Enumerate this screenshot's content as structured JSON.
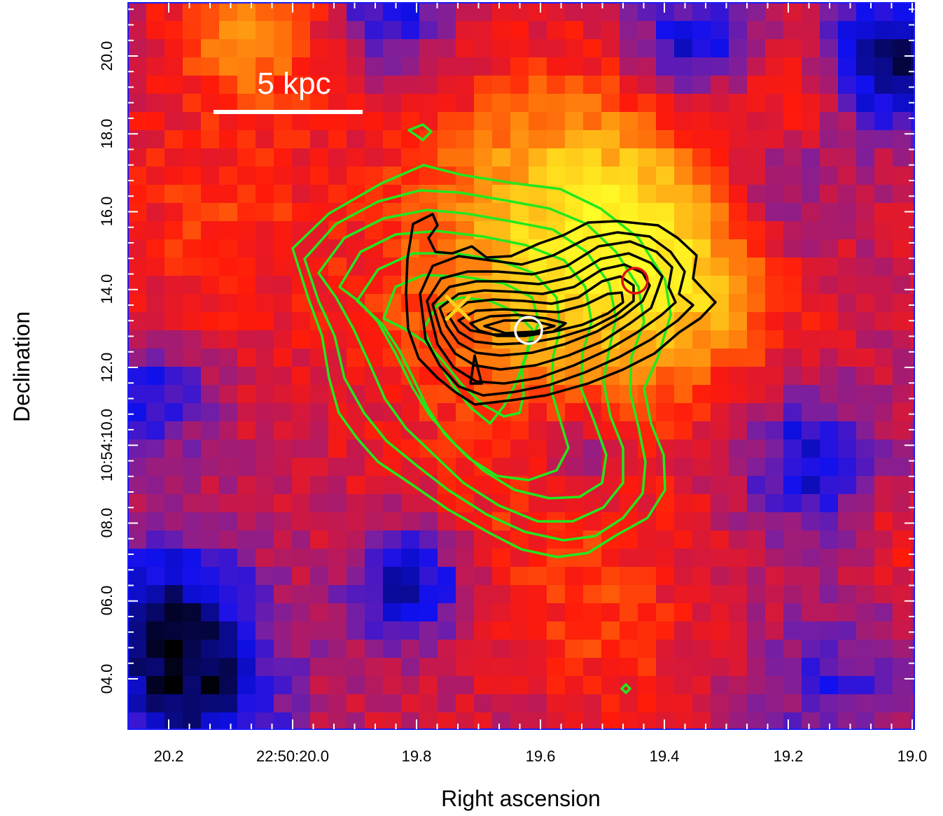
{
  "axes": {
    "xlabel": "Right ascension",
    "ylabel": "Declination",
    "xticks": [
      "20.2",
      "22:50:20.0",
      "19.8",
      "19.6",
      "19.4",
      "19.2",
      "19.0"
    ],
    "yticks": [
      "04.0",
      "06.0",
      "08.0",
      "10:54:10.0",
      "12.0",
      "14.0",
      "16.0",
      "18.0",
      "20.0"
    ]
  },
  "scale_bar": {
    "label": "5 kpc"
  },
  "colors": {
    "frame": "#1a1aff",
    "green_contours": "#22e81e",
    "black_contours": "#000000",
    "cross": "#ffd21a",
    "white_circle": "#ffffff",
    "red_circle": "#e01010",
    "colormap": [
      "#000000",
      "#0a0a8c",
      "#1010f0",
      "#7a1fa0",
      "#c8184a",
      "#ff1a0a",
      "#ff6a0a",
      "#ffaa14",
      "#ffe61e",
      "#ffff28"
    ]
  },
  "markers": [
    {
      "name": "cross",
      "ra": "19.73",
      "dec": "13.4"
    },
    {
      "name": "white-circle",
      "ra": "19.62",
      "dec": "13.0"
    },
    {
      "name": "red-circle",
      "ra": "19.45",
      "dec": "14.2"
    }
  ]
}
